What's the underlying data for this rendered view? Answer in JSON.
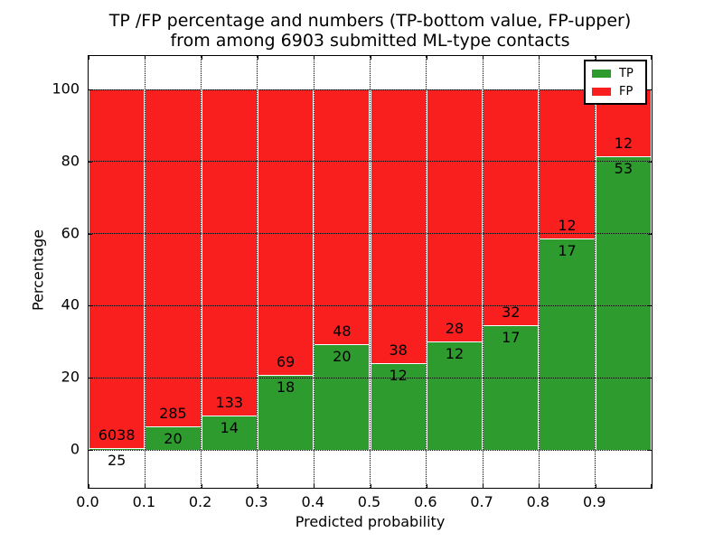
{
  "figure": {
    "title_line1": "TP /FP percentage and numbers (TP-bottom value, FP-upper)",
    "title_line2": "from among 6903 submitted ML-type contacts"
  },
  "chart_data": {
    "type": "bar",
    "stacked": true,
    "normalized_to": 100,
    "title": "TP /FP percentage and numbers (TP-bottom value, FP-upper)\nfrom among 6903 submitted ML-type contacts",
    "total_contacts": 6903,
    "xlabel": "Predicted probability",
    "ylabel": "Percentage",
    "xlim": [
      0.0,
      1.0
    ],
    "ylim": [
      -10.5,
      109.6
    ],
    "grid": "dotted",
    "x_tick_labels": [
      "0.0",
      "0.1",
      "0.2",
      "0.3",
      "0.4",
      "0.5",
      "0.6",
      "0.7",
      "0.8",
      "0.9"
    ],
    "y_tick_values": [
      0,
      20,
      40,
      60,
      80,
      100
    ],
    "y_tick_labels": [
      "0",
      "20",
      "40",
      "60",
      "80",
      "100"
    ],
    "categories": [
      "0.0-0.1",
      "0.1-0.2",
      "0.2-0.3",
      "0.3-0.4",
      "0.4-0.5",
      "0.5-0.6",
      "0.6-0.7",
      "0.7-0.8",
      "0.8-0.9",
      "0.9-1.0"
    ],
    "series": [
      {
        "name": "TP",
        "color": "#2E9B2E",
        "counts": [
          25,
          20,
          14,
          18,
          20,
          12,
          12,
          17,
          17,
          53
        ]
      },
      {
        "name": "FP",
        "color": "#FA1F1F",
        "counts": [
          6038,
          285,
          133,
          69,
          48,
          38,
          28,
          32,
          12,
          12
        ]
      }
    ],
    "tp_percentages": [
      0.41,
      6.56,
      9.52,
      20.69,
      29.41,
      24.0,
      30.0,
      34.69,
      58.62,
      81.54
    ],
    "legend": {
      "position": "upper right",
      "entries": [
        {
          "label": "TP",
          "color": "#2E9B2E"
        },
        {
          "label": "FP",
          "color": "#FA1F1F"
        }
      ]
    }
  }
}
